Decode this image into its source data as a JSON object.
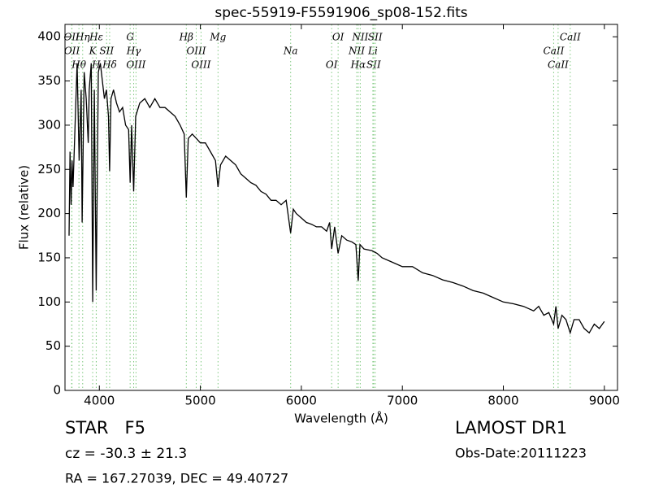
{
  "chart_data": {
    "type": "line",
    "title": "spec-55919-F5591906_sp08-152.fits",
    "xlabel": "Wavelength (Å)",
    "ylabel": "Flux (relative)",
    "xlim": [
      3660,
      9130
    ],
    "ylim": [
      0,
      414
    ],
    "xticks": [
      4000,
      5000,
      6000,
      7000,
      8000,
      9000
    ],
    "yticks": [
      0,
      50,
      100,
      150,
      200,
      250,
      300,
      350,
      400
    ],
    "color": "#000000",
    "line_color": "#7fc97f",
    "x": [
      3700,
      3710,
      3720,
      3730,
      3740,
      3760,
      3780,
      3800,
      3820,
      3830,
      3850,
      3870,
      3890,
      3900,
      3920,
      3934,
      3950,
      3969,
      3990,
      4010,
      4030,
      4050,
      4070,
      4090,
      4102,
      4115,
      4140,
      4170,
      4200,
      4230,
      4260,
      4290,
      4305,
      4320,
      4340,
      4360,
      4400,
      4450,
      4500,
      4550,
      4600,
      4650,
      4700,
      4750,
      4800,
      4840,
      4861,
      4880,
      4920,
      4960,
      5000,
      5050,
      5100,
      5150,
      5175,
      5200,
      5250,
      5300,
      5350,
      5400,
      5450,
      5500,
      5550,
      5600,
      5650,
      5700,
      5750,
      5800,
      5850,
      5894,
      5920,
      5950,
      6000,
      6050,
      6100,
      6150,
      6200,
      6250,
      6280,
      6300,
      6330,
      6364,
      6400,
      6450,
      6500,
      6540,
      6563,
      6580,
      6620,
      6700,
      6750,
      6800,
      6900,
      7000,
      7100,
      7200,
      7300,
      7400,
      7500,
      7600,
      7700,
      7800,
      7900,
      8000,
      8100,
      8200,
      8300,
      8350,
      8400,
      8450,
      8498,
      8520,
      8542,
      8580,
      8620,
      8662,
      8700,
      8750,
      8800,
      8850,
      8900,
      8950,
      9000
    ],
    "values": [
      175,
      270,
      210,
      260,
      230,
      300,
      370,
      260,
      340,
      190,
      360,
      330,
      280,
      340,
      370,
      100,
      340,
      113,
      360,
      370,
      350,
      330,
      340,
      310,
      248,
      330,
      340,
      325,
      315,
      320,
      300,
      295,
      235,
      300,
      225,
      310,
      325,
      330,
      320,
      330,
      320,
      320,
      315,
      310,
      300,
      290,
      218,
      285,
      290,
      285,
      280,
      280,
      270,
      260,
      230,
      255,
      265,
      260,
      255,
      245,
      240,
      235,
      232,
      225,
      222,
      215,
      215,
      210,
      215,
      178,
      205,
      200,
      195,
      190,
      188,
      185,
      185,
      180,
      190,
      160,
      185,
      155,
      175,
      170,
      168,
      165,
      124,
      165,
      160,
      158,
      155,
      150,
      145,
      140,
      140,
      133,
      130,
      125,
      122,
      118,
      113,
      110,
      105,
      100,
      98,
      95,
      90,
      95,
      85,
      88,
      75,
      95,
      70,
      85,
      80,
      65,
      80,
      80,
      70,
      65,
      75,
      70,
      78
    ],
    "spectral_lines": [
      {
        "wavelength": 3726,
        "label": "OII"
      },
      {
        "wavelength": 3729,
        "label": "OII"
      },
      {
        "wavelength": 3798,
        "label": "Hθ"
      },
      {
        "wavelength": 3835,
        "label": "Hη"
      },
      {
        "wavelength": 3934,
        "label": "K"
      },
      {
        "wavelength": 3969,
        "label": "H"
      },
      {
        "wavelength": 3970,
        "label": "Hε"
      },
      {
        "wavelength": 4072,
        "label": "SII"
      },
      {
        "wavelength": 4102,
        "label": "Hδ"
      },
      {
        "wavelength": 4305,
        "label": "G"
      },
      {
        "wavelength": 4340,
        "label": "Hγ"
      },
      {
        "wavelength": 4363,
        "label": "OIII"
      },
      {
        "wavelength": 4861,
        "label": "Hβ"
      },
      {
        "wavelength": 4959,
        "label": "OIII"
      },
      {
        "wavelength": 5007,
        "label": "OIII"
      },
      {
        "wavelength": 5175,
        "label": "Mg"
      },
      {
        "wavelength": 5894,
        "label": "Na"
      },
      {
        "wavelength": 6300,
        "label": "OI"
      },
      {
        "wavelength": 6364,
        "label": "OI"
      },
      {
        "wavelength": 6548,
        "label": "NII"
      },
      {
        "wavelength": 6563,
        "label": "Hα"
      },
      {
        "wavelength": 6583,
        "label": "NII"
      },
      {
        "wavelength": 6708,
        "label": "Li"
      },
      {
        "wavelength": 6716,
        "label": "SII"
      },
      {
        "wavelength": 6731,
        "label": "SII"
      },
      {
        "wavelength": 8498,
        "label": "CaII"
      },
      {
        "wavelength": 8542,
        "label": "CaII"
      },
      {
        "wavelength": 8662,
        "label": "CaII"
      }
    ]
  },
  "info": {
    "object": "STAR   F5",
    "survey": "LAMOST DR1",
    "cz": "cz = -30.3 ± 21.3",
    "obs_date": "Obs-Date:20111223",
    "coords": "RA = 167.27039, DEC = 49.40727"
  }
}
